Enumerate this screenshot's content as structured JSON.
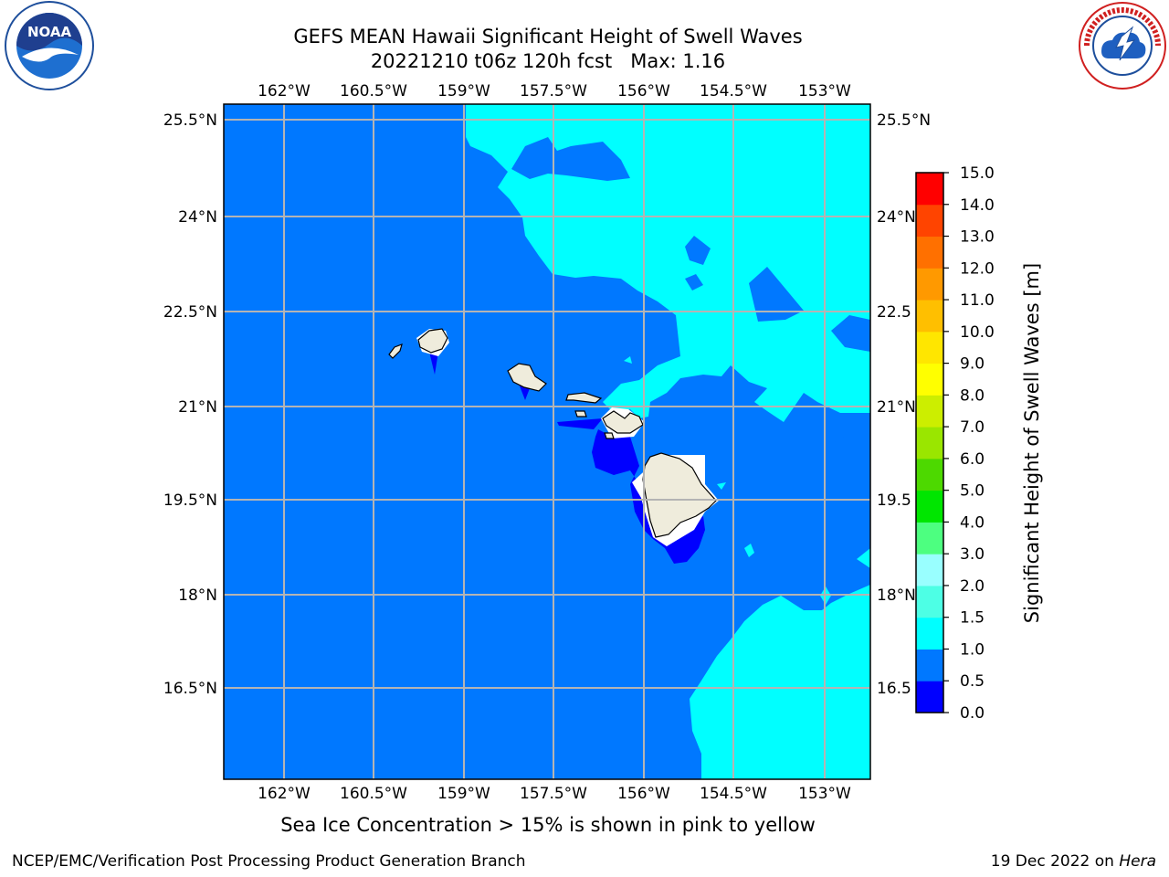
{
  "header": {
    "title_line1": "GEFS MEAN Hawaii Significant Height of Swell Waves",
    "title_line2": "20221210 t06z 120h fcst   Max: 1.16"
  },
  "logos": {
    "left": {
      "icon": "noaa-logo-icon",
      "text": "NOAA"
    },
    "right": {
      "icon": "nws-logo-icon",
      "text": "NATIONAL WEATHER SERVICE"
    }
  },
  "map": {
    "lon_ticks": [
      "162°W",
      "160.5°W",
      "159°W",
      "157.5°W",
      "156°W",
      "154.5°W",
      "153°W"
    ],
    "lat_ticks": [
      "25.5°N",
      "24°N",
      "22.5°N",
      "21°N",
      "19.5°N",
      "18°N",
      "16.5°N"
    ],
    "right_lat_ticks": [
      "25.5°N",
      "24°N",
      "22.5",
      "21°N",
      "19.5",
      "18°N",
      "16.5"
    ],
    "colors": {
      "land": "#efecdc",
      "very_low": "#0000ff",
      "low": "#0078ff",
      "mid": "#00ffff",
      "mask": "#ffffff",
      "grid": "#b4b4b4"
    }
  },
  "colorbar": {
    "label": "Significant Height of Swell Waves [m]",
    "tick_labels": [
      "0.0",
      "0.5",
      "1.0",
      "1.5",
      "2.0",
      "3.0",
      "4.0",
      "5.0",
      "6.0",
      "7.0",
      "8.0",
      "9.0",
      "10.0",
      "11.0",
      "12.0",
      "13.0",
      "14.0",
      "15.0"
    ],
    "colors": [
      "#0000ff",
      "#0078ff",
      "#00ffff",
      "#4dffe5",
      "#99ffff",
      "#4dff80",
      "#00e600",
      "#4dd900",
      "#9ae600",
      "#ccee00",
      "#ffff00",
      "#ffe600",
      "#ffbf00",
      "#ff9900",
      "#ff7000",
      "#ff4400",
      "#ff0000"
    ]
  },
  "subtitle": "Sea Ice Concentration > 15% is shown in pink to yellow",
  "footer": {
    "left": "NCEP/EMC/Verification Post Processing Product Generation Branch",
    "right_prefix": "19 Dec 2022 on ",
    "right_host": "Hera"
  }
}
